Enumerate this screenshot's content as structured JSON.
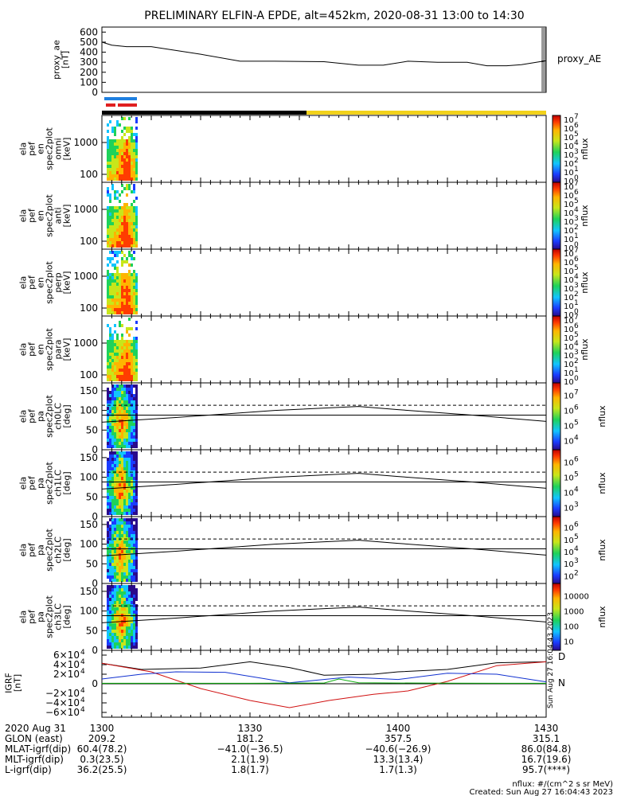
{
  "title": "PRELIMINARY ELFIN-A EPDE, alt=452km, 2020-08-31 13:00 to 14:30",
  "colors": {
    "frame": "#000000",
    "blue_bar": "#1e7fe0",
    "red_bar": "#e02020",
    "dark_bar": "#000000",
    "sun_bar": "#f2d21b"
  },
  "proxy_ae": {
    "ylabel": [
      "proxy_ae",
      "[nT]"
    ],
    "legend": "proxy_AE",
    "yticks": [
      "600",
      "500",
      "400",
      "300",
      "200",
      "100",
      "0"
    ],
    "ylim": [
      0,
      650
    ]
  },
  "spec_panels": [
    {
      "ylabel": [
        "ela",
        "pef",
        "en",
        "spec2plot",
        "omni",
        "[keV]"
      ],
      "yticks": [
        "1000",
        "100"
      ],
      "cbar_label": "nflux"
    },
    {
      "ylabel": [
        "ela",
        "pef",
        "en",
        "spec2plot",
        "anti",
        "[keV]"
      ],
      "yticks": [
        "1000",
        "100"
      ],
      "cbar_label": "nflux"
    },
    {
      "ylabel": [
        "ela",
        "pef",
        "en",
        "spec2plot",
        "perp",
        "[keV]"
      ],
      "yticks": [
        "1000",
        "100"
      ],
      "cbar_label": "nflux"
    },
    {
      "ylabel": [
        "ela",
        "pef",
        "en",
        "spec2plot",
        "para",
        "[keV]"
      ],
      "yticks": [
        "1000",
        "100"
      ],
      "cbar_label": "nflux"
    }
  ],
  "cbar_log_ticks": [
    "10",
    "10",
    "10",
    "10",
    "10",
    "10",
    "10",
    "10"
  ],
  "cbar_log_exps": [
    "7",
    "6",
    "5",
    "4",
    "3",
    "2",
    "1",
    "0"
  ],
  "pa_panels": [
    {
      "ylabel": [
        "ela",
        "pef",
        "pa",
        "spec2plot",
        "ch0LC",
        "[deg]"
      ],
      "yticks": [
        "150",
        "100",
        "50",
        "0"
      ],
      "cbar_label": "nflux",
      "cbar_exps": [
        "7",
        "6",
        "5",
        "4"
      ]
    },
    {
      "ylabel": [
        "ela",
        "pef",
        "pa",
        "spec2plot",
        "ch1LC",
        "[deg]"
      ],
      "yticks": [
        "150",
        "100",
        "50",
        "0"
      ],
      "cbar_label": "nflux",
      "cbar_exps": [
        "6",
        "5",
        "4",
        "3"
      ]
    },
    {
      "ylabel": [
        "ela",
        "pef",
        "pa",
        "spec2plot",
        "ch2LC",
        "[deg]"
      ],
      "yticks": [
        "150",
        "100",
        "50",
        "0"
      ],
      "cbar_label": "nflux",
      "cbar_exps": [
        "6",
        "5",
        "4",
        "3",
        "2"
      ]
    },
    {
      "ylabel": [
        "ela",
        "pef",
        "pa",
        "spec2plot",
        "ch3LC",
        "[deg]"
      ],
      "yticks": [
        "150",
        "100",
        "50",
        "0"
      ],
      "cbar_label": "nflux",
      "cbar_plain": [
        "10000",
        "1000",
        "100",
        "10"
      ]
    }
  ],
  "igrf": {
    "ylabel": [
      "IGRF",
      "[nT]"
    ],
    "ytick_mantissas": [
      "6",
      "4",
      "2",
      "0",
      "−2",
      "−4",
      "−6"
    ],
    "legend": [
      "D",
      "N"
    ],
    "side_text": "Sun Aug 27 16:04:43 2023"
  },
  "footer": {
    "rows": [
      {
        "label": "2020 Aug 31",
        "values": [
          "1300",
          "1330",
          "1400",
          "1430"
        ]
      },
      {
        "label": "GLON (east)",
        "values": [
          "209.2",
          "181.2",
          "357.5",
          "315.1"
        ]
      },
      {
        "label": "MLAT-igrf(dip)",
        "values": [
          "60.4(78.2)",
          "−41.0(−36.5)",
          "−40.6(−26.9)",
          "86.0(84.8)"
        ]
      },
      {
        "label": "MLT-igrf(dip)",
        "values": [
          "0.3(23.5)",
          "2.1(1.9)",
          "13.3(13.4)",
          "16.7(19.6)"
        ]
      },
      {
        "label": "L-igrf(dip)",
        "values": [
          "36.2(25.5)",
          "1.8(1.7)",
          "1.7(1.3)",
          "95.7(****)"
        ]
      }
    ],
    "units_note": "nflux: #/(cm^2 s sr MeV)",
    "created": "Created: Sun Aug 27 16:04:43 2023"
  },
  "chart_data": {
    "type": "line",
    "title": "PRELIMINARY ELFIN-A EPDE, alt=452km, 2020-08-31 13:00 to 14:30",
    "x_ticks": [
      "1300",
      "1330",
      "1400",
      "1430"
    ],
    "x_range_minutes": [
      0,
      90
    ],
    "proxy_ae": {
      "x": [
        0,
        2,
        5,
        10,
        20,
        28,
        35,
        45,
        52,
        57,
        62,
        68,
        74,
        78,
        82,
        85,
        88,
        90
      ],
      "y": [
        500,
        470,
        455,
        455,
        380,
        310,
        310,
        305,
        270,
        270,
        310,
        300,
        300,
        265,
        265,
        275,
        300,
        315
      ],
      "ylim": [
        0,
        650
      ]
    },
    "lc_line": {
      "x": [
        0,
        15,
        35,
        52,
        60,
        75,
        90
      ],
      "y": [
        70,
        82,
        100,
        110,
        102,
        88,
        72
      ]
    },
    "pa_dashed_levels": [
      113,
      88
    ],
    "pa_solid_level": 88,
    "igrf_series": [
      {
        "name": "black",
        "color": "#000000",
        "x": [
          0,
          8,
          20,
          30,
          38,
          45,
          55,
          60,
          70,
          80,
          90
        ],
        "y": [
          43000,
          30000,
          33000,
          46000,
          34000,
          18000,
          20000,
          25000,
          30000,
          44000,
          46000
        ]
      },
      {
        "name": "red",
        "color": "#d01010",
        "x": [
          0,
          10,
          20,
          30,
          38,
          46,
          55,
          62,
          70,
          80,
          90
        ],
        "y": [
          43000,
          25000,
          -10000,
          -35000,
          -50000,
          -35000,
          -22000,
          -15000,
          5000,
          38000,
          46000
        ]
      },
      {
        "name": "blue",
        "color": "#1030d0",
        "x": [
          0,
          8,
          15,
          25,
          38,
          46,
          50,
          60,
          70,
          80,
          90
        ],
        "y": [
          10000,
          20000,
          25000,
          24000,
          2000,
          10000,
          14000,
          9000,
          22000,
          20000,
          4000
        ]
      },
      {
        "name": "green",
        "color": "#10b010",
        "x": [
          0,
          30,
          45,
          48,
          52,
          70,
          90
        ],
        "y": [
          1000,
          1000,
          1500,
          10000,
          2000,
          1200,
          1000
        ]
      }
    ],
    "igrf_ylim": [
      -70000,
      70000
    ],
    "igrf_ticks": [
      60000,
      40000,
      20000,
      0,
      -20000,
      -40000,
      -60000
    ],
    "spectrogram_active_interval_minutes": [
      0,
      6
    ]
  }
}
